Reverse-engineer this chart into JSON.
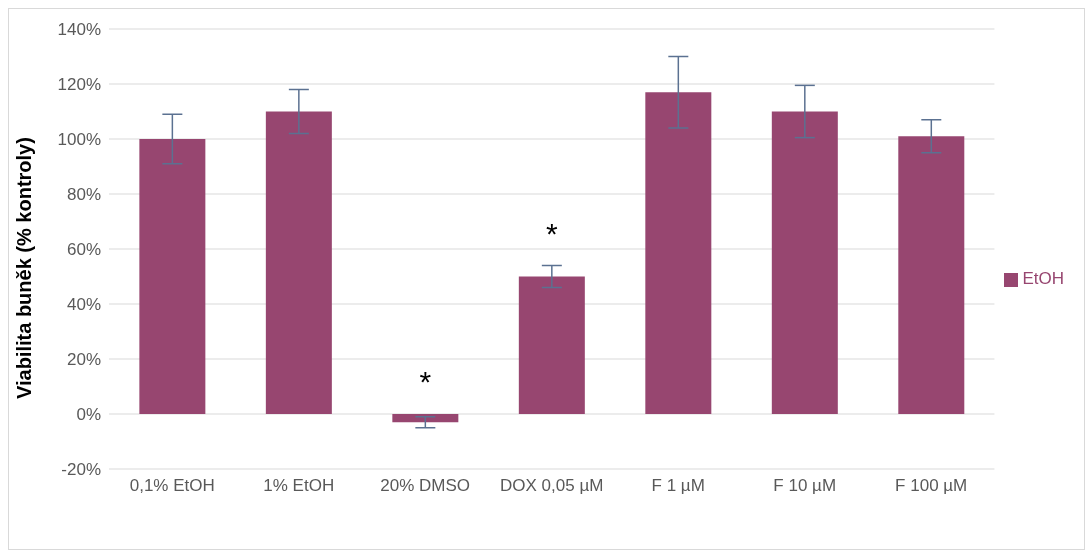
{
  "chart_data": {
    "type": "bar",
    "ylabel": "Viabilita buněk (% kontroly)",
    "categories": [
      "0,1% EtOH",
      "1% EtOH",
      "20% DMSO",
      "DOX 0,05 µM",
      "F 1 µM",
      "F 10 µM",
      "F 100 µM"
    ],
    "series": [
      {
        "name": "EtOH",
        "color": "#974670",
        "values": [
          100,
          110,
          -3,
          50,
          117,
          110,
          101
        ],
        "errors": [
          9,
          8,
          2,
          4,
          13,
          9.5,
          6
        ]
      }
    ],
    "ylim": [
      -20,
      140
    ],
    "yticks": [
      {
        "value": -20,
        "label": "-20%"
      },
      {
        "value": 0,
        "label": "0%"
      },
      {
        "value": 20,
        "label": "20%"
      },
      {
        "value": 40,
        "label": "40%"
      },
      {
        "value": 60,
        "label": "60%"
      },
      {
        "value": 80,
        "label": "80%"
      },
      {
        "value": 100,
        "label": "100%"
      },
      {
        "value": 120,
        "label": "120%"
      },
      {
        "value": 140,
        "label": "140%"
      }
    ],
    "annotations": [
      "*",
      "*"
    ],
    "grid": "y",
    "legend": "right"
  }
}
